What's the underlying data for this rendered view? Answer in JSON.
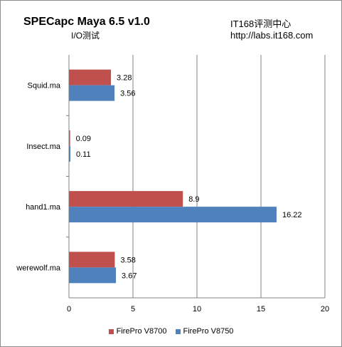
{
  "header": {
    "title": "SPECapc Maya 6.5 v1.0",
    "subtitle": "I/O测试",
    "brand": "IT168评测中心",
    "url": "http://labs.it168.com"
  },
  "colors": {
    "series1": "#c0504d",
    "series2": "#4f81bd"
  },
  "chart_data": {
    "type": "bar",
    "orientation": "horizontal",
    "categories": [
      "Squid.ma",
      "Insect.ma",
      "hand1.ma",
      "werewolf.ma"
    ],
    "series": [
      {
        "name": "FirePro V8700",
        "values": [
          3.28,
          0.09,
          8.9,
          3.58
        ]
      },
      {
        "name": "FirePro V8750",
        "values": [
          3.56,
          0.11,
          16.22,
          3.67
        ]
      }
    ],
    "xlim": [
      0,
      20
    ],
    "xticks": [
      0,
      5,
      10,
      15,
      20
    ],
    "grid": true,
    "legend": "bottom"
  }
}
